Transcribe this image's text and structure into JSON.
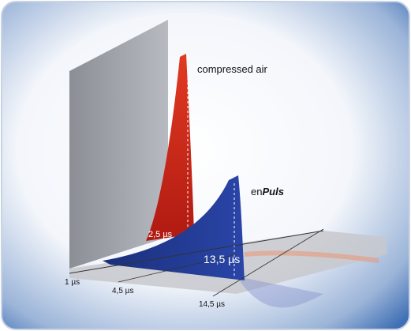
{
  "labels": {
    "compressed_air": "compressed air",
    "enpuls": {
      "prefix": "en",
      "emphasis": "Puls"
    },
    "red_duration": "2,5 µs",
    "blue_duration": "13,5 µs"
  },
  "axis": {
    "ticks": [
      "1 µs",
      "4,5 µs",
      "14,5 µs"
    ]
  }
}
